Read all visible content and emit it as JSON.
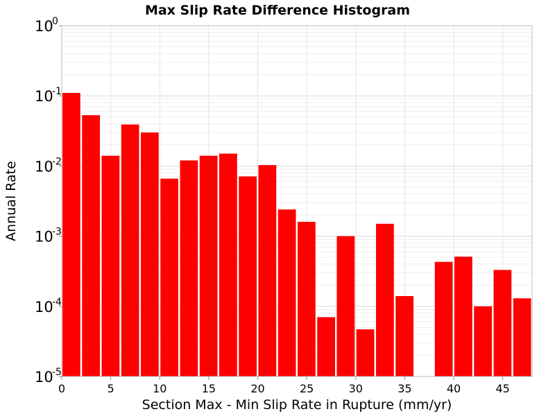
{
  "chart_data": {
    "type": "bar",
    "title": "Max Slip Rate Difference Histogram",
    "xlabel": "Section Max - Min Slip Rate in Rupture (mm/yr)",
    "ylabel": "Annual Rate",
    "y_scale": "log",
    "xlim": [
      0,
      48
    ],
    "ylim": [
      1e-05,
      1
    ],
    "bin_width": 2,
    "x_ticks": [
      "0",
      "5",
      "10",
      "15",
      "20",
      "25",
      "30",
      "35",
      "40",
      "45"
    ],
    "y_ticks": [
      {
        "base": "10",
        "exp": "0"
      },
      {
        "base": "10",
        "exp": "-1"
      },
      {
        "base": "10",
        "exp": "-2"
      },
      {
        "base": "10",
        "exp": "-3"
      },
      {
        "base": "10",
        "exp": "-4"
      },
      {
        "base": "10",
        "exp": "-5"
      }
    ],
    "grid": true,
    "bar_color": "#ff0000",
    "bins": [
      {
        "x": 1,
        "value": 0.11
      },
      {
        "x": 3,
        "value": 0.053
      },
      {
        "x": 5,
        "value": 0.014
      },
      {
        "x": 7,
        "value": 0.039
      },
      {
        "x": 9,
        "value": 0.03
      },
      {
        "x": 11,
        "value": 0.0066
      },
      {
        "x": 13,
        "value": 0.012
      },
      {
        "x": 15,
        "value": 0.014
      },
      {
        "x": 17,
        "value": 0.015
      },
      {
        "x": 19,
        "value": 0.0071
      },
      {
        "x": 21,
        "value": 0.0103
      },
      {
        "x": 23,
        "value": 0.0024
      },
      {
        "x": 25,
        "value": 0.0016
      },
      {
        "x": 27,
        "value": 7e-05
      },
      {
        "x": 29,
        "value": 0.001
      },
      {
        "x": 31,
        "value": 4.7e-05
      },
      {
        "x": 33,
        "value": 0.0015
      },
      {
        "x": 35,
        "value": 0.00014
      },
      {
        "x": 37,
        "value": 0
      },
      {
        "x": 39,
        "value": 0.00043
      },
      {
        "x": 41,
        "value": 0.00051
      },
      {
        "x": 43,
        "value": 0.0001
      },
      {
        "x": 45,
        "value": 0.00033
      },
      {
        "x": 47,
        "value": 0.00013
      }
    ]
  }
}
